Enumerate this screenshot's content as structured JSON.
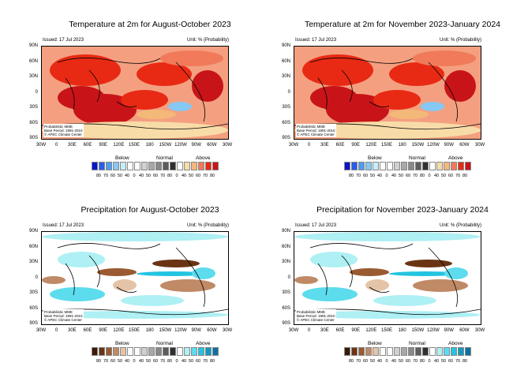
{
  "common": {
    "issued": "Issued: 17 Jul 2023",
    "unit": "Unit: % (Probability)",
    "note": [
      "Probabilistic MME",
      "Base Period: 1991-2010",
      "© APEC Climate Center"
    ],
    "lat_labels": [
      "90N",
      "60N",
      "30N",
      "0",
      "30S",
      "60S",
      "90S"
    ],
    "lon_labels": [
      "30W",
      "0",
      "30E",
      "60E",
      "90E",
      "120E",
      "150E",
      "180",
      "150W",
      "120W",
      "90W",
      "60W",
      "30W"
    ],
    "colorbar_headers": [
      "Below",
      "Normal",
      "Above"
    ],
    "colorbar_labels": [
      "80",
      "70",
      "60",
      "50",
      "40",
      "0",
      "40",
      "50",
      "60",
      "70",
      "80",
      "0",
      "40",
      "50",
      "60",
      "70",
      "80"
    ]
  },
  "colors": {
    "temperature": [
      "#0a14c8",
      "#2a5ce8",
      "#4e9cf0",
      "#86c8f4",
      "#c4eefa",
      "#ffffff",
      "#ffffff",
      "#d0d0d0",
      "#a8a8a8",
      "#888888",
      "#5c5c5c",
      "#303030",
      "#ffffff",
      "#f8dca8",
      "#f4b878",
      "#f07a5a",
      "#e82a14",
      "#c81418"
    ],
    "precipitation": [
      "#3a1a08",
      "#6a3414",
      "#9a5a32",
      "#c08a66",
      "#e4c4a8",
      "#ffffff",
      "#ffffff",
      "#d0d0d0",
      "#a8a8a8",
      "#888888",
      "#5c5c5c",
      "#303030",
      "#ffffff",
      "#aef0f4",
      "#5cdcec",
      "#22c4e0",
      "#1498c0",
      "#0c70a0"
    ]
  },
  "panels": [
    {
      "title": "Temperature at 2m for August-October 2023",
      "variable": "temperature"
    },
    {
      "title": "Temperature at 2m for November 2023-January 2024",
      "variable": "temperature"
    },
    {
      "title": "Precipitation for August-October 2023",
      "variable": "precipitation"
    },
    {
      "title": "Precipitation for November 2023-January 2024",
      "variable": "precipitation"
    }
  ]
}
